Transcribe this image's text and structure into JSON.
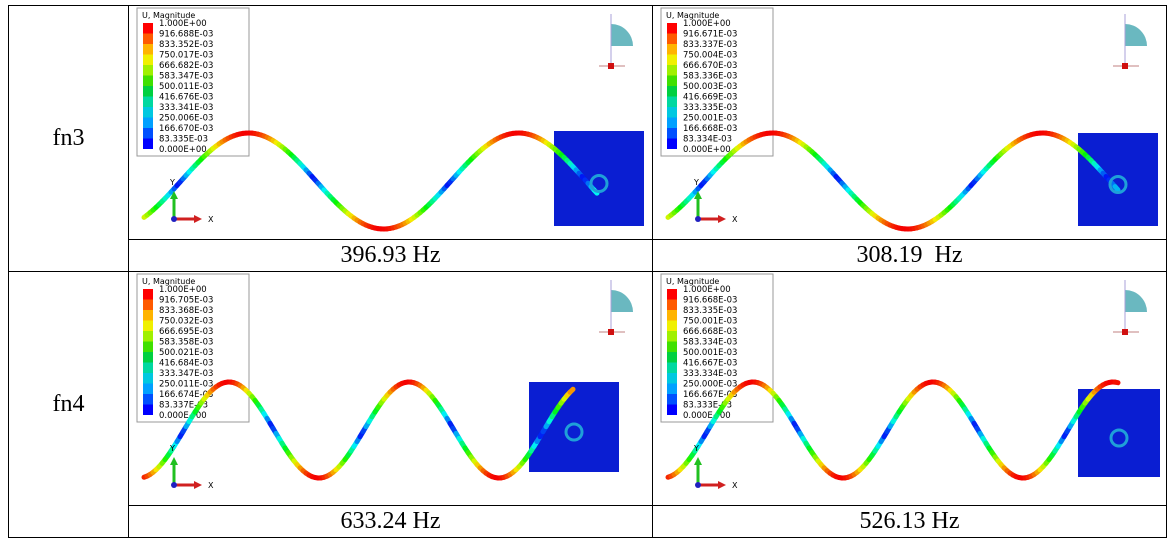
{
  "table": {
    "rows": [
      {
        "label": "fn3",
        "cells": [
          {
            "legend_title": "U, Magnitude",
            "legend_values": [
              "1.000E+00",
              "916.688E-03",
              "833.352E-03",
              "750.017E-03",
              "666.682E-03",
              "583.347E-03",
              "500.011E-03",
              "416.676E-03",
              "333.341E-03",
              "250.006E-03",
              "166.670E-03",
              "83.335E-03",
              "0.000E+00"
            ],
            "axis_labels": [
              "Y",
              "X"
            ],
            "caption": "396.93 Hz"
          },
          {
            "legend_title": "U, Magnitude",
            "legend_values": [
              "1.000E+00",
              "916.671E-03",
              "833.337E-03",
              "750.004E-03",
              "666.670E-03",
              "583.336E-03",
              "500.003E-03",
              "416.669E-03",
              "333.335E-03",
              "250.001E-03",
              "166.668E-03",
              "83.334E-03",
              "0.000E+00"
            ],
            "axis_labels": [
              "Y",
              "X"
            ],
            "caption": "308.19  Hz"
          }
        ]
      },
      {
        "label": "fn4",
        "cells": [
          {
            "legend_title": "U, Magnitude",
            "legend_values": [
              "1.000E+00",
              "916.705E-03",
              "833.368E-03",
              "750.032E-03",
              "666.695E-03",
              "583.358E-03",
              "500.021E-03",
              "416.684E-03",
              "333.347E-03",
              "250.011E-03",
              "166.674E-03",
              "83.337E-03",
              "0.000E+00"
            ],
            "axis_labels": [
              "Y",
              "X"
            ],
            "caption": "633.24 Hz"
          },
          {
            "legend_title": "U, Magnitude",
            "legend_values": [
              "1.000E+00",
              "916.668E-03",
              "833.335E-03",
              "750.001E-03",
              "666.668E-03",
              "583.334E-03",
              "500.001E-03",
              "416.667E-03",
              "333.334E-03",
              "250.000E-03",
              "166.667E-03",
              "83.333E-03",
              "0.000E+00"
            ],
            "axis_labels": [
              "Y",
              "X"
            ],
            "caption": "526.13 Hz"
          }
        ]
      }
    ]
  }
}
